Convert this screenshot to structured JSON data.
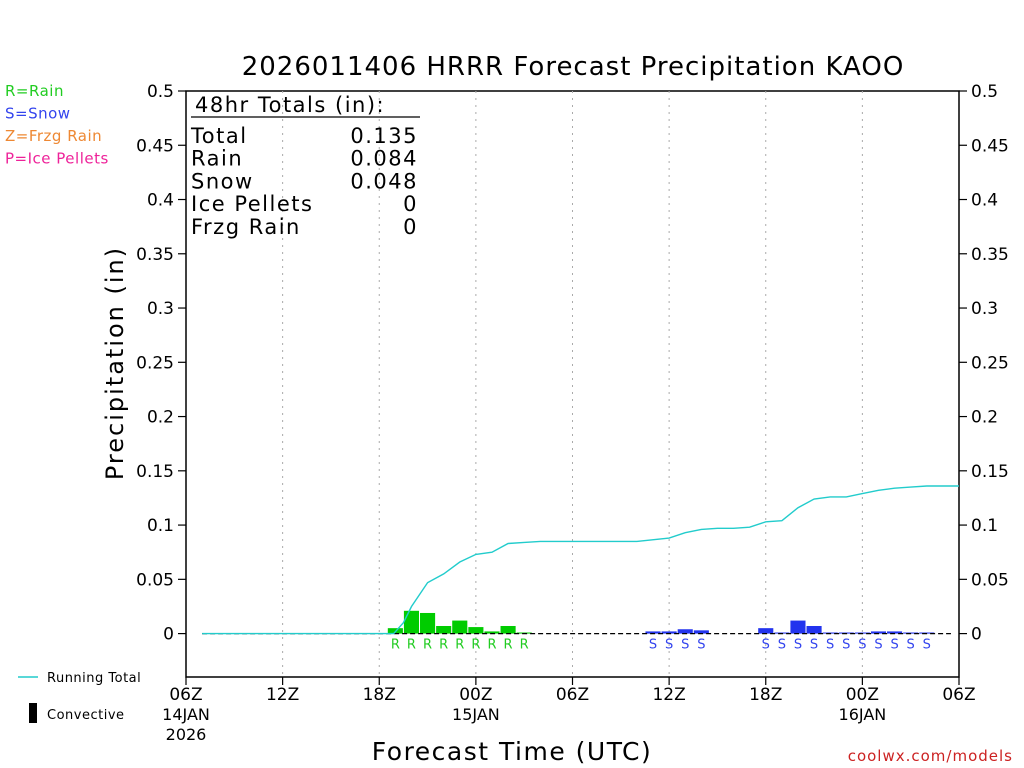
{
  "chart_data": {
    "type": "bar",
    "title": "2026011406 HRRR Forecast Precipitation KAOO",
    "xlabel": "Forecast Time (UTC)",
    "ylabel": "Precipitation (in)",
    "ylim": [
      -0.04,
      0.5
    ],
    "yticks": [
      "0",
      "0.05",
      "0.1",
      "0.15",
      "0.2",
      "0.25",
      "0.3",
      "0.35",
      "0.4",
      "0.45",
      "0.5"
    ],
    "xlim": [
      0,
      48
    ],
    "xticks": [
      {
        "hour": 0,
        "label": "06Z",
        "date": "14JAN",
        "year": "2026"
      },
      {
        "hour": 6,
        "label": "12Z",
        "date": "",
        "year": ""
      },
      {
        "hour": 12,
        "label": "18Z",
        "date": "",
        "year": ""
      },
      {
        "hour": 18,
        "label": "00Z",
        "date": "15JAN",
        "year": ""
      },
      {
        "hour": 24,
        "label": "06Z",
        "date": "",
        "year": ""
      },
      {
        "hour": 30,
        "label": "12Z",
        "date": "",
        "year": ""
      },
      {
        "hour": 36,
        "label": "18Z",
        "date": "",
        "year": ""
      },
      {
        "hour": 42,
        "label": "00Z",
        "date": "16JAN",
        "year": ""
      },
      {
        "hour": 48,
        "label": "06Z",
        "date": "",
        "year": ""
      }
    ],
    "grid": "vertical dotted",
    "totals": {
      "header": "48hr Totals (in):",
      "rows": [
        {
          "label": "Total",
          "value": "0.135"
        },
        {
          "label": "Rain",
          "value": "0.084"
        },
        {
          "label": "Snow",
          "value": "0.048"
        },
        {
          "label": "Ice Pellets",
          "value": "0"
        },
        {
          "label": "Frzg Rain",
          "value": "0"
        }
      ]
    },
    "precip_legend": [
      {
        "text": "R=Rain",
        "color": "#22cc22"
      },
      {
        "text": "S=Snow",
        "color": "#3344ee"
      },
      {
        "text": "Z=Frzg Rain",
        "color": "#ee8833"
      },
      {
        "text": "P=Ice Pellets",
        "color": "#ee2299"
      }
    ],
    "series_legend": [
      {
        "text": "Running Total",
        "color": "#22cccc"
      },
      {
        "text": "Convective",
        "color": "#000000"
      }
    ],
    "hourly_bars": [
      {
        "hour": 13,
        "value": 0.005,
        "type": "R",
        "color": "#00cc00"
      },
      {
        "hour": 14,
        "value": 0.021,
        "type": "R",
        "color": "#00cc00"
      },
      {
        "hour": 15,
        "value": 0.019,
        "type": "R",
        "color": "#00cc00"
      },
      {
        "hour": 16,
        "value": 0.007,
        "type": "R",
        "color": "#00cc00"
      },
      {
        "hour": 17,
        "value": 0.012,
        "type": "R",
        "color": "#00cc00"
      },
      {
        "hour": 18,
        "value": 0.006,
        "type": "R",
        "color": "#00cc00"
      },
      {
        "hour": 19,
        "value": 0.002,
        "type": "R",
        "color": "#00cc00"
      },
      {
        "hour": 20,
        "value": 0.007,
        "type": "R",
        "color": "#00cc00"
      },
      {
        "hour": 21,
        "value": 0.001,
        "type": "R",
        "color": "#00cc00"
      },
      {
        "hour": 29,
        "value": 0.002,
        "type": "S",
        "color": "#2233ee"
      },
      {
        "hour": 30,
        "value": 0.002,
        "type": "S",
        "color": "#2233ee"
      },
      {
        "hour": 31,
        "value": 0.004,
        "type": "S",
        "color": "#2233ee"
      },
      {
        "hour": 32,
        "value": 0.003,
        "type": "S",
        "color": "#2233ee"
      },
      {
        "hour": 36,
        "value": 0.005,
        "type": "S",
        "color": "#2233ee"
      },
      {
        "hour": 37,
        "value": 0.001,
        "type": "S",
        "color": "#2233ee"
      },
      {
        "hour": 38,
        "value": 0.012,
        "type": "S",
        "color": "#2233ee"
      },
      {
        "hour": 39,
        "value": 0.007,
        "type": "S",
        "color": "#2233ee"
      },
      {
        "hour": 40,
        "value": 0.001,
        "type": "S",
        "color": "#2233ee"
      },
      {
        "hour": 41,
        "value": 0.001,
        "type": "S",
        "color": "#2233ee"
      },
      {
        "hour": 42,
        "value": 0.001,
        "type": "S",
        "color": "#2233ee"
      },
      {
        "hour": 43,
        "value": 0.002,
        "type": "S",
        "color": "#2233ee"
      },
      {
        "hour": 44,
        "value": 0.002,
        "type": "S",
        "color": "#2233ee"
      },
      {
        "hour": 45,
        "value": 0.001,
        "type": "S",
        "color": "#2233ee"
      },
      {
        "hour": 46,
        "value": 0.001,
        "type": "S",
        "color": "#2233ee"
      }
    ],
    "type_labels": [
      {
        "hour": 13,
        "text": "R",
        "color": "#22cc22"
      },
      {
        "hour": 14,
        "text": "R",
        "color": "#22cc22"
      },
      {
        "hour": 15,
        "text": "R",
        "color": "#22cc22"
      },
      {
        "hour": 16,
        "text": "R",
        "color": "#22cc22"
      },
      {
        "hour": 17,
        "text": "R",
        "color": "#22cc22"
      },
      {
        "hour": 18,
        "text": "R",
        "color": "#22cc22"
      },
      {
        "hour": 19,
        "text": "R",
        "color": "#22cc22"
      },
      {
        "hour": 20,
        "text": "R",
        "color": "#22cc22"
      },
      {
        "hour": 21,
        "text": "R",
        "color": "#22cc22"
      },
      {
        "hour": 29,
        "text": "S",
        "color": "#3344ee"
      },
      {
        "hour": 30,
        "text": "S",
        "color": "#3344ee"
      },
      {
        "hour": 31,
        "text": "S",
        "color": "#3344ee"
      },
      {
        "hour": 32,
        "text": "S",
        "color": "#3344ee"
      },
      {
        "hour": 36,
        "text": "S",
        "color": "#3344ee"
      },
      {
        "hour": 37,
        "text": "S",
        "color": "#3344ee"
      },
      {
        "hour": 38,
        "text": "S",
        "color": "#3344ee"
      },
      {
        "hour": 39,
        "text": "S",
        "color": "#3344ee"
      },
      {
        "hour": 40,
        "text": "S",
        "color": "#3344ee"
      },
      {
        "hour": 41,
        "text": "S",
        "color": "#3344ee"
      },
      {
        "hour": 42,
        "text": "S",
        "color": "#3344ee"
      },
      {
        "hour": 43,
        "text": "S",
        "color": "#3344ee"
      },
      {
        "hour": 44,
        "text": "S",
        "color": "#3344ee"
      },
      {
        "hour": 45,
        "text": "S",
        "color": "#3344ee"
      },
      {
        "hour": 46,
        "text": "S",
        "color": "#3344ee"
      }
    ],
    "running_total": {
      "name": "Running Total",
      "color": "#22cccc",
      "points": [
        [
          1,
          0
        ],
        [
          12.9,
          0
        ],
        [
          13.5,
          0.01
        ],
        [
          14,
          0.025
        ],
        [
          15,
          0.047
        ],
        [
          16,
          0.055
        ],
        [
          17,
          0.066
        ],
        [
          18,
          0.073
        ],
        [
          19,
          0.075
        ],
        [
          20,
          0.083
        ],
        [
          21,
          0.084
        ],
        [
          22,
          0.085
        ],
        [
          24,
          0.085
        ],
        [
          26,
          0.085
        ],
        [
          28,
          0.085
        ],
        [
          30,
          0.088
        ],
        [
          31,
          0.093
        ],
        [
          32,
          0.096
        ],
        [
          33,
          0.097
        ],
        [
          34,
          0.097
        ],
        [
          35,
          0.098
        ],
        [
          36,
          0.103
        ],
        [
          37,
          0.104
        ],
        [
          38,
          0.116
        ],
        [
          39,
          0.124
        ],
        [
          40,
          0.126
        ],
        [
          41,
          0.126
        ],
        [
          42,
          0.129
        ],
        [
          43,
          0.132
        ],
        [
          44,
          0.134
        ],
        [
          45,
          0.135
        ],
        [
          46,
          0.136
        ],
        [
          48,
          0.136
        ]
      ]
    },
    "zero_line_style": "dashed"
  },
  "watermark": "coolwx.com/models"
}
